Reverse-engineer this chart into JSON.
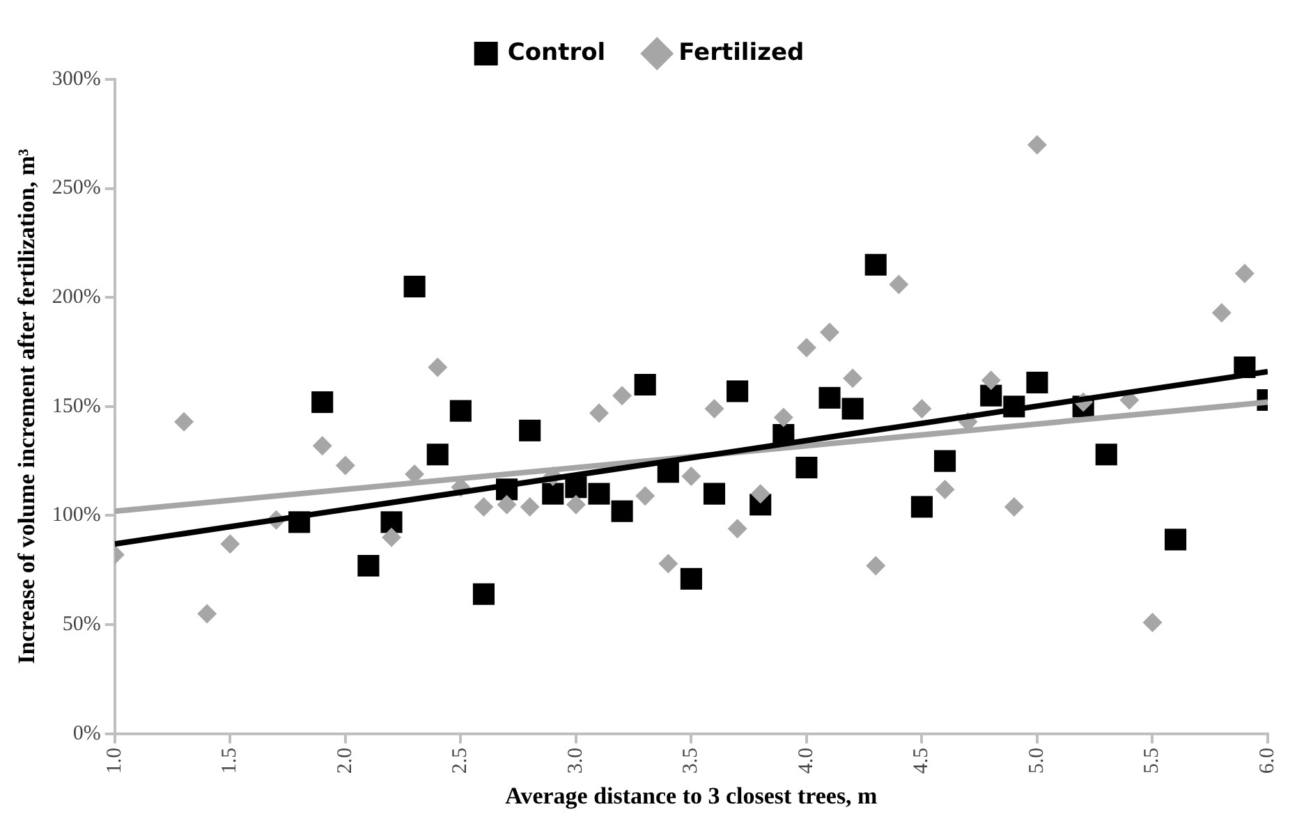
{
  "chart_data": {
    "type": "scatter",
    "xlabel": "Average distance to 3 closest trees, m",
    "ylabel": "Increase of volume increment after fertilization, m³",
    "xlim": [
      1,
      6
    ],
    "xticks": [
      {
        "value": 1,
        "label": "1.0"
      },
      {
        "value": 1.5,
        "label": "1.5"
      },
      {
        "value": 2,
        "label": "2.0"
      },
      {
        "value": 2.5,
        "label": "2.5"
      },
      {
        "value": 3,
        "label": "3.0"
      },
      {
        "value": 3.5,
        "label": "3.5"
      },
      {
        "value": 4,
        "label": "4.0"
      },
      {
        "value": 4.5,
        "label": "4.5"
      },
      {
        "value": 5,
        "label": "5.0"
      },
      {
        "value": 5.5,
        "label": "5.5"
      },
      {
        "value": 6,
        "label": "6.0"
      }
    ],
    "ylim": [
      0,
      300
    ],
    "yticks": [
      {
        "value": 0,
        "label": "0%"
      },
      {
        "value": 50,
        "label": "50%"
      },
      {
        "value": 100,
        "label": "100%"
      },
      {
        "value": 150,
        "label": "150%"
      },
      {
        "value": 200,
        "label": "200%"
      },
      {
        "value": 250,
        "label": "250%"
      },
      {
        "value": 300,
        "label": "300%"
      }
    ],
    "grid": false,
    "legend": "top",
    "series": [
      {
        "name": "Control",
        "color": "#000000",
        "marker": "square",
        "x": [
          1.8,
          1.9,
          2.1,
          2.2,
          2.3,
          2.4,
          2.5,
          2.6,
          2.7,
          2.8,
          2.9,
          3.0,
          3.1,
          3.2,
          3.3,
          3.4,
          3.5,
          3.6,
          3.7,
          3.8,
          3.9,
          4.0,
          4.1,
          4.2,
          4.3,
          4.5,
          4.6,
          4.8,
          4.9,
          5.0,
          5.2,
          5.3,
          5.6,
          5.9,
          6.0
        ],
        "values": [
          97,
          152,
          77,
          97,
          205,
          128,
          148,
          64,
          112,
          139,
          110,
          113,
          110,
          102,
          160,
          120,
          71,
          110,
          157,
          105,
          137,
          122,
          154,
          149,
          215,
          104,
          125,
          155,
          150,
          161,
          150,
          128,
          89,
          168,
          153
        ]
      },
      {
        "name": "Fertilized",
        "color": "#a6a6a6",
        "marker": "diamond",
        "x": [
          1.0,
          1.3,
          1.4,
          1.5,
          1.7,
          1.9,
          2.0,
          2.2,
          2.3,
          2.4,
          2.5,
          2.6,
          2.7,
          2.8,
          2.9,
          3.0,
          3.1,
          3.2,
          3.3,
          3.4,
          3.5,
          3.6,
          3.7,
          3.8,
          3.9,
          4.0,
          4.1,
          4.2,
          4.3,
          4.4,
          4.5,
          4.6,
          4.7,
          4.8,
          4.9,
          5.0,
          5.2,
          5.4,
          5.5,
          5.8,
          5.9
        ],
        "values": [
          82,
          143,
          55,
          87,
          98,
          132,
          123,
          90,
          119,
          168,
          113,
          104,
          105,
          104,
          118,
          105,
          147,
          155,
          109,
          78,
          118,
          149,
          94,
          110,
          145,
          177,
          184,
          163,
          77,
          206,
          149,
          112,
          143,
          162,
          104,
          270,
          152,
          153,
          51,
          193,
          211
        ]
      },
      {
        "type": "line",
        "color": "#000000",
        "marker": "none",
        "line_style": "solid",
        "x": [
          1,
          6
        ],
        "values": [
          87,
          166
        ]
      },
      {
        "type": "line",
        "color": "#a6a6a6",
        "marker": "none",
        "line_style": "solid",
        "x": [
          1,
          6
        ],
        "values": [
          102,
          152
        ]
      }
    ]
  }
}
